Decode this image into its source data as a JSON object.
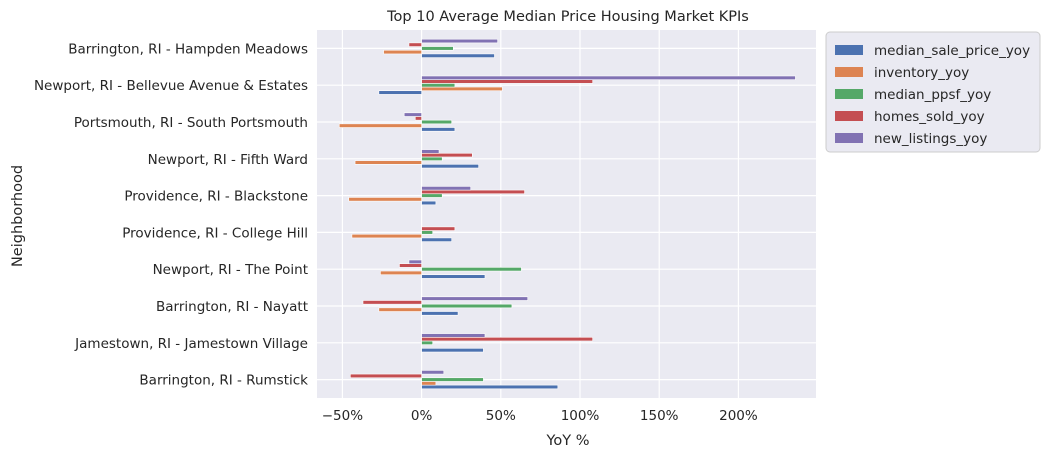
{
  "chart_data": {
    "type": "bar",
    "orientation": "horizontal",
    "title": "Top 10 Average Median Price Housing Market KPIs",
    "xlabel": "YoY %",
    "ylabel": "Neighborhood",
    "xlim": [
      -0.6604,
      2.4898
    ],
    "xticks": [
      {
        "value": -0.5,
        "label": "−50%"
      },
      {
        "value": 0,
        "label": "0%"
      },
      {
        "value": 0.5,
        "label": "50%"
      },
      {
        "value": 1,
        "label": "100%"
      },
      {
        "value": 1.5,
        "label": "150%"
      },
      {
        "value": 2,
        "label": "200%"
      }
    ],
    "grid": true,
    "legend_position": "outside-top-right",
    "categories": [
      "Barrington, RI - Hampden Meadows",
      "Newport, RI - Bellevue Avenue & Estates",
      "Portsmouth, RI - South Portsmouth",
      "Newport, RI - Fifth Ward",
      "Providence, RI - Blackstone",
      "Providence, RI - College Hill",
      "Newport, RI - The Point",
      "Barrington, RI - Nayatt",
      "Jamestown, RI - Jamestown Village",
      "Barrington, RI - Rumstick"
    ],
    "series": [
      {
        "name": "median_sale_price_yoy",
        "color": "#4c72b0",
        "values": [
          0.46,
          -0.27,
          0.21,
          0.36,
          0.09,
          0.19,
          0.4,
          0.23,
          0.39,
          0.86
        ]
      },
      {
        "name": "inventory_yoy",
        "color": "#dd8452",
        "values": [
          -0.24,
          0.51,
          -0.52,
          -0.42,
          -0.46,
          -0.44,
          -0.26,
          -0.27,
          0.0,
          0.09
        ]
      },
      {
        "name": "median_ppsf_yoy",
        "color": "#55a868",
        "values": [
          0.2,
          0.21,
          0.19,
          0.13,
          0.13,
          0.07,
          0.63,
          0.57,
          0.07,
          0.39
        ]
      },
      {
        "name": "homes_sold_yoy",
        "color": "#c44e52",
        "values": [
          -0.08,
          1.08,
          -0.04,
          0.32,
          0.65,
          0.21,
          -0.14,
          -0.37,
          1.08,
          -0.45
        ]
      },
      {
        "name": "new_listings_yoy",
        "color": "#8172b3",
        "values": [
          0.48,
          2.36,
          -0.11,
          0.11,
          0.31,
          0.0,
          -0.08,
          0.67,
          0.4,
          0.14
        ]
      }
    ]
  }
}
